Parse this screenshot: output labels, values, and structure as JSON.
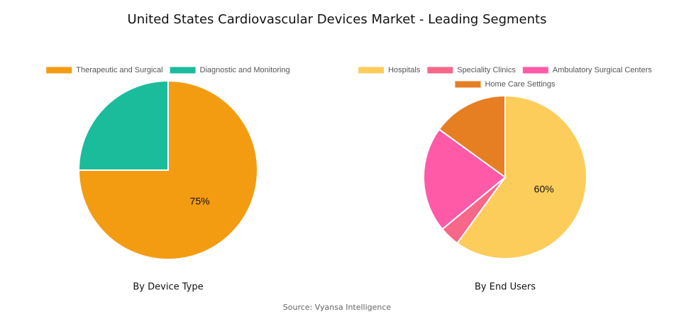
{
  "title": "United States Cardiovascular Devices Market - Leading Segments",
  "source": "Source: Vyansa Intelligence",
  "chart_data": [
    {
      "type": "pie",
      "subtitle": "By Device Type",
      "categories": [
        "Therapeutic and Surgical",
        "Diagnostic and Monitoring"
      ],
      "values": [
        75,
        25
      ],
      "value_labels": [
        "75%",
        null
      ],
      "colors": [
        "#f39c12",
        "#1abc9c"
      ]
    },
    {
      "type": "pie",
      "subtitle": "By End Users",
      "categories": [
        "Hospitals",
        "Speciality Clinics",
        "Ambulatory Surgical Centers",
        "Home Care Settings"
      ],
      "values": [
        60,
        4,
        21,
        15
      ],
      "value_labels": [
        "60%",
        null,
        null,
        null
      ],
      "colors": [
        "#fdcd5b",
        "#f6678a",
        "#ff5aa8",
        "#e67e22"
      ]
    }
  ]
}
